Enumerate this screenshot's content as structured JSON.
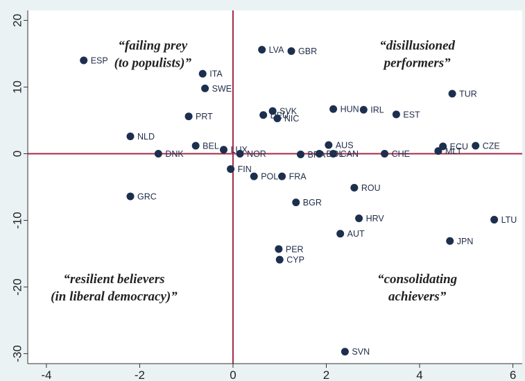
{
  "chart_data": {
    "type": "scatter",
    "title": "",
    "xlabel": "",
    "ylabel": "",
    "xlim": [
      -4.4,
      6.2
    ],
    "ylim": [
      -31.5,
      21.5
    ],
    "xticks": [
      -4,
      -2,
      0,
      2,
      4,
      6
    ],
    "yticks": [
      20,
      10,
      0,
      -10,
      -20,
      -30
    ],
    "xtick_labels": [
      "-4",
      "-2",
      "0",
      "2",
      "4",
      "6"
    ],
    "ytick_labels": [
      "20",
      "10",
      "0",
      "-10",
      "-20",
      "-30"
    ],
    "grid": false,
    "reference_lines": {
      "x": 0,
      "y": 0,
      "color": "#a3294a"
    },
    "marker_color": "#1c2f4e",
    "background_color": "#eaf2f3",
    "points": [
      {
        "label": "ESP",
        "x": -3.2,
        "y": 14.0
      },
      {
        "label": "ITA",
        "x": -0.65,
        "y": 12.0
      },
      {
        "label": "SWE",
        "x": -0.6,
        "y": 9.8
      },
      {
        "label": "PRT",
        "x": -0.95,
        "y": 5.6
      },
      {
        "label": "NLD",
        "x": -2.2,
        "y": 2.6
      },
      {
        "label": "BEL",
        "x": -0.8,
        "y": 1.2
      },
      {
        "label": "LUX",
        "x": -0.2,
        "y": 0.6
      },
      {
        "label": "DNK",
        "x": -1.6,
        "y": 0.0
      },
      {
        "label": "NOR",
        "x": 0.15,
        "y": 0.0
      },
      {
        "label": "FIN",
        "x": -0.05,
        "y": -2.3
      },
      {
        "label": "POL",
        "x": 0.45,
        "y": -3.4
      },
      {
        "label": "FRA",
        "x": 1.05,
        "y": -3.4
      },
      {
        "label": "GRC",
        "x": -2.2,
        "y": -6.4
      },
      {
        "label": "LVA",
        "x": 0.62,
        "y": 15.6
      },
      {
        "label": "GBR",
        "x": 1.25,
        "y": 15.4
      },
      {
        "label": "SVK",
        "x": 0.85,
        "y": 6.4
      },
      {
        "label": "DEU",
        "x": 0.65,
        "y": 5.8
      },
      {
        "label": "NIC",
        "x": 0.95,
        "y": 5.3
      },
      {
        "label": "HUN",
        "x": 2.15,
        "y": 6.7
      },
      {
        "label": "IRL",
        "x": 2.8,
        "y": 6.6
      },
      {
        "label": "EST",
        "x": 3.5,
        "y": 5.9
      },
      {
        "label": "TUR",
        "x": 4.7,
        "y": 9.0
      },
      {
        "label": "AUS",
        "x": 2.05,
        "y": 1.3
      },
      {
        "label": "BRA",
        "x": 1.45,
        "y": -0.1
      },
      {
        "label": "BOL",
        "x": 1.85,
        "y": 0.0
      },
      {
        "label": "CAN",
        "x": 2.15,
        "y": 0.0
      },
      {
        "label": "CHE",
        "x": 3.25,
        "y": 0.0
      },
      {
        "label": "ECU",
        "x": 4.5,
        "y": 1.1
      },
      {
        "label": "MLT",
        "x": 4.4,
        "y": 0.4
      },
      {
        "label": "CZE",
        "x": 5.2,
        "y": 1.2
      },
      {
        "label": "ROU",
        "x": 2.6,
        "y": -5.1
      },
      {
        "label": "BGR",
        "x": 1.35,
        "y": -7.3
      },
      {
        "label": "HRV",
        "x": 2.7,
        "y": -9.7
      },
      {
        "label": "LTU",
        "x": 5.6,
        "y": -9.9
      },
      {
        "label": "AUT",
        "x": 2.3,
        "y": -12.0
      },
      {
        "label": "JPN",
        "x": 4.65,
        "y": -13.1
      },
      {
        "label": "PER",
        "x": 0.98,
        "y": -14.3
      },
      {
        "label": "CYP",
        "x": 1.0,
        "y": -15.9
      },
      {
        "label": "SVN",
        "x": 2.4,
        "y": -29.7
      }
    ],
    "annotations": [
      {
        "lines": [
          "“failing prey",
          "(to populists)”"
        ],
        "x": -1.72,
        "y": 15.6
      },
      {
        "lines": [
          "“disillusioned",
          "performers”"
        ],
        "x": 3.95,
        "y": 15.6
      },
      {
        "lines": [
          "“resilient believers",
          "(in liberal democracy)”"
        ],
        "x": -2.55,
        "y": -19.4
      },
      {
        "lines": [
          "“consolidating",
          "achievers”"
        ],
        "x": 3.95,
        "y": -19.4
      }
    ]
  }
}
